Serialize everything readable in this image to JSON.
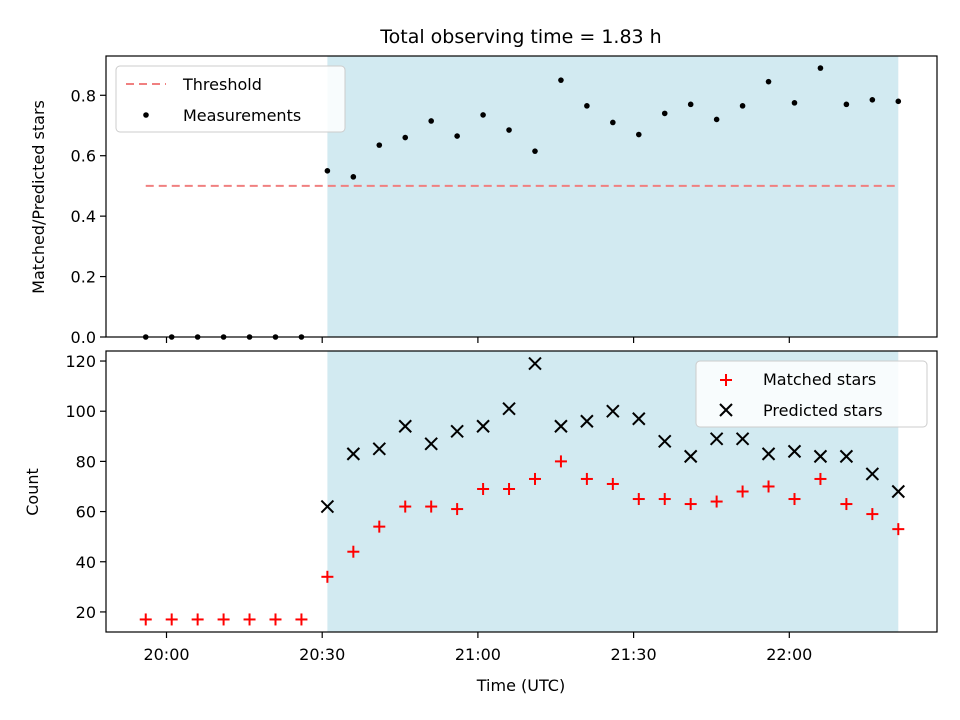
{
  "chart_data": [
    {
      "type": "scatter",
      "title": "Total observing time = 1.83 h",
      "xlabel": "",
      "ylabel": "Matched/Predicted stars",
      "ylim": [
        0,
        0.93
      ],
      "yticks": [
        "0.0",
        "0.2",
        "0.4",
        "0.6",
        "0.8"
      ],
      "xticks": [
        "20:00",
        "20:30",
        "21:00",
        "21:30",
        "22:00"
      ],
      "legend_position": "top-left",
      "observing_window": {
        "start": "20:31",
        "end": "22:21",
        "color": "#add8e6"
      },
      "threshold": {
        "name": "Threshold",
        "value": 0.5,
        "start": "19:56",
        "end": "22:21",
        "color": "#f08080"
      },
      "series": [
        {
          "name": "Measurements",
          "color": "#000000",
          "x": [
            "19:56",
            "20:01",
            "20:06",
            "20:11",
            "20:16",
            "20:21",
            "20:26",
            "20:31",
            "20:36",
            "20:41",
            "20:46",
            "20:51",
            "20:56",
            "21:01",
            "21:06",
            "21:11",
            "21:16",
            "21:21",
            "21:26",
            "21:31",
            "21:36",
            "21:41",
            "21:46",
            "21:51",
            "21:56",
            "22:01",
            "22:06",
            "22:11",
            "22:16",
            "22:21"
          ],
          "values": [
            0,
            0,
            0,
            0,
            0,
            0,
            0,
            0.55,
            0.53,
            0.635,
            0.66,
            0.715,
            0.665,
            0.735,
            0.685,
            0.615,
            0.85,
            0.765,
            0.71,
            0.67,
            0.74,
            0.77,
            0.72,
            0.765,
            0.845,
            0.775,
            0.89,
            0.77,
            0.785,
            0.78
          ]
        }
      ]
    },
    {
      "type": "scatter",
      "title": "",
      "xlabel": "Time (UTC)",
      "ylabel": "Count",
      "ylim": [
        12,
        124
      ],
      "yticks": [
        "20",
        "40",
        "60",
        "80",
        "100",
        "120"
      ],
      "xticks": [
        "20:00",
        "20:30",
        "21:00",
        "21:30",
        "22:00"
      ],
      "legend_position": "top-right",
      "observing_window": {
        "start": "20:31",
        "end": "22:21",
        "color": "#add8e6"
      },
      "series": [
        {
          "name": "Matched stars",
          "marker": "+",
          "color": "#ff0000",
          "x": [
            "19:56",
            "20:01",
            "20:06",
            "20:11",
            "20:16",
            "20:21",
            "20:26",
            "20:31",
            "20:36",
            "20:41",
            "20:46",
            "20:51",
            "20:56",
            "21:01",
            "21:06",
            "21:11",
            "21:16",
            "21:21",
            "21:26",
            "21:31",
            "21:36",
            "21:41",
            "21:46",
            "21:51",
            "21:56",
            "22:01",
            "22:06",
            "22:11",
            "22:16",
            "22:21"
          ],
          "values": [
            17,
            17,
            17,
            17,
            17,
            17,
            17,
            34,
            44,
            54,
            62,
            62,
            61,
            69,
            69,
            73,
            80,
            73,
            71,
            65,
            65,
            63,
            64,
            68,
            70,
            65,
            73,
            63,
            59,
            53
          ]
        },
        {
          "name": "Predicted stars",
          "marker": "x",
          "color": "#000000",
          "x": [
            "20:31",
            "20:36",
            "20:41",
            "20:46",
            "20:51",
            "20:56",
            "21:01",
            "21:06",
            "21:11",
            "21:16",
            "21:21",
            "21:26",
            "21:31",
            "21:36",
            "21:41",
            "21:46",
            "21:51",
            "21:56",
            "22:01",
            "22:06",
            "22:11",
            "22:16",
            "22:21"
          ],
          "values": [
            62,
            83,
            85,
            94,
            87,
            92,
            94,
            101,
            119,
            94,
            96,
            100,
            97,
            88,
            82,
            89,
            89,
            83,
            84,
            82,
            82,
            75,
            68
          ]
        }
      ]
    }
  ]
}
